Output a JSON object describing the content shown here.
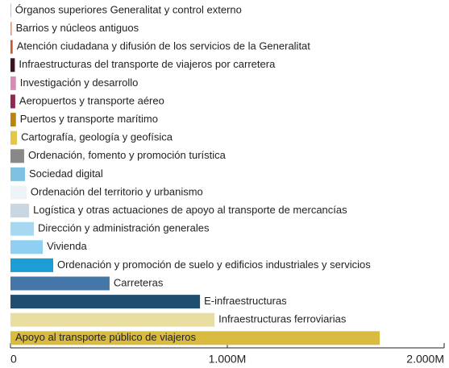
{
  "chart_data": {
    "type": "barh",
    "categories": [
      "Órganos superiores Generalitat y control externo",
      "Barrios y núcleos antiguos",
      "Atención ciudadana y difusión de los servicios de la Generalitat",
      "Infraestructuras del transporte de viajeros por carretera",
      "Investigación y desarrollo",
      "Aeropuertos y transporte aéreo",
      "Puertos y transporte marítimo",
      "Cartografía, geología y geofísica",
      "Ordenación, fomento y promoción turística",
      "Sociedad digital",
      "Ordenación del territorio y urbanismo",
      "Logística y otras actuaciones de apoyo al transporte de mercancías",
      "Dirección y administración generales",
      "Vivienda",
      "Ordenación y promoción de suelo y edificios industriales y servicios",
      "Carreteras",
      "E-infraestructuras",
      "Infraestructuras ferroviarias",
      "Apoyo al transporte público de viajeros"
    ],
    "values": [
      3,
      6,
      10,
      20,
      25,
      22,
      25,
      30,
      63,
      67,
      74,
      86,
      108,
      149,
      197,
      457,
      874,
      941,
      1703
    ],
    "colors": [
      "#f2b49c",
      "#e8956e",
      "#c65a2e",
      "#3d1229",
      "#d98ab5",
      "#8e2a52",
      "#b8860b",
      "#e3c64a",
      "#888888",
      "#7fc1e0",
      "#eef3f8",
      "#c9d7e3",
      "#a6d8f2",
      "#8fd0f2",
      "#1a9ed4",
      "#4477a8",
      "#1f4e70",
      "#e9dea0",
      "#d9bb3f"
    ],
    "xlim": [
      0,
      2000
    ],
    "xticks": [
      0,
      {
        "value": 1000,
        "label": "1.000M"
      },
      {
        "value": 2000,
        "label": "2.000M"
      }
    ]
  }
}
